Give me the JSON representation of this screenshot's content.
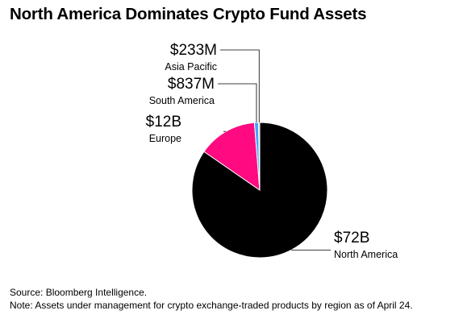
{
  "title": "North America Dominates Crypto Fund Assets",
  "footer": {
    "source": "Source: Bloomberg Intelligence.",
    "note": "Note: Assets under management for crypto exchange-traded products by region as of April 24."
  },
  "chart_data": {
    "type": "pie",
    "title": "North America Dominates Crypto Fund Assets",
    "slices": [
      {
        "name": "North America",
        "value": 72,
        "value_label": "$72B",
        "color": "#000000"
      },
      {
        "name": "Europe",
        "value": 12,
        "value_label": "$12B",
        "color": "#ff0a80"
      },
      {
        "name": "South America",
        "value": 0.837,
        "value_label": "$837M",
        "color": "#4aa2ff"
      },
      {
        "name": "Asia Pacific",
        "value": 0.233,
        "value_label": "$233M",
        "color": "#b9b9b9"
      }
    ]
  }
}
